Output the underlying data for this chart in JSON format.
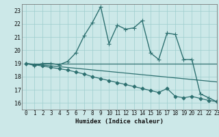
{
  "title": "",
  "xlabel": "Humidex (Indice chaleur)",
  "background_color": "#cce8e8",
  "grid_color": "#9ecece",
  "line_color": "#2d7070",
  "xlim": [
    -0.5,
    23
  ],
  "ylim": [
    15.5,
    23.5
  ],
  "yticks": [
    16,
    17,
    18,
    19,
    20,
    21,
    22,
    23
  ],
  "xticks": [
    0,
    1,
    2,
    3,
    4,
    5,
    6,
    7,
    8,
    9,
    10,
    11,
    12,
    13,
    14,
    15,
    16,
    17,
    18,
    19,
    20,
    21,
    22,
    23
  ],
  "lines": [
    {
      "x": [
        0,
        1,
        2,
        3,
        4,
        5,
        6,
        7,
        8,
        9,
        10,
        11,
        12,
        13,
        14,
        15,
        16,
        17,
        18,
        19,
        20,
        21,
        22,
        23
      ],
      "y": [
        19.0,
        18.85,
        19.0,
        19.0,
        18.9,
        19.15,
        19.8,
        21.1,
        22.1,
        23.3,
        20.5,
        21.9,
        21.6,
        21.7,
        22.25,
        19.8,
        19.3,
        21.3,
        21.2,
        19.3,
        19.3,
        16.7,
        16.4,
        16.1
      ],
      "marker": "+",
      "markersize": 4,
      "linewidth": 1.0
    },
    {
      "x": [
        0,
        23
      ],
      "y": [
        19.0,
        19.0
      ],
      "marker": null,
      "markersize": 0,
      "linewidth": 0.9
    },
    {
      "x": [
        0,
        23
      ],
      "y": [
        19.0,
        17.6
      ],
      "marker": null,
      "markersize": 0,
      "linewidth": 0.9
    },
    {
      "x": [
        0,
        1,
        2,
        3,
        4,
        5,
        6,
        7,
        8,
        9,
        10,
        11,
        12,
        13,
        14,
        15,
        16,
        17,
        18,
        19,
        20,
        21,
        22,
        23
      ],
      "y": [
        19.0,
        18.9,
        18.8,
        18.7,
        18.6,
        18.5,
        18.35,
        18.2,
        18.0,
        17.85,
        17.7,
        17.55,
        17.4,
        17.25,
        17.1,
        16.95,
        16.8,
        17.1,
        16.5,
        16.4,
        16.5,
        16.35,
        16.2,
        16.1
      ],
      "marker": "D",
      "markersize": 2.5,
      "linewidth": 0.9
    }
  ]
}
